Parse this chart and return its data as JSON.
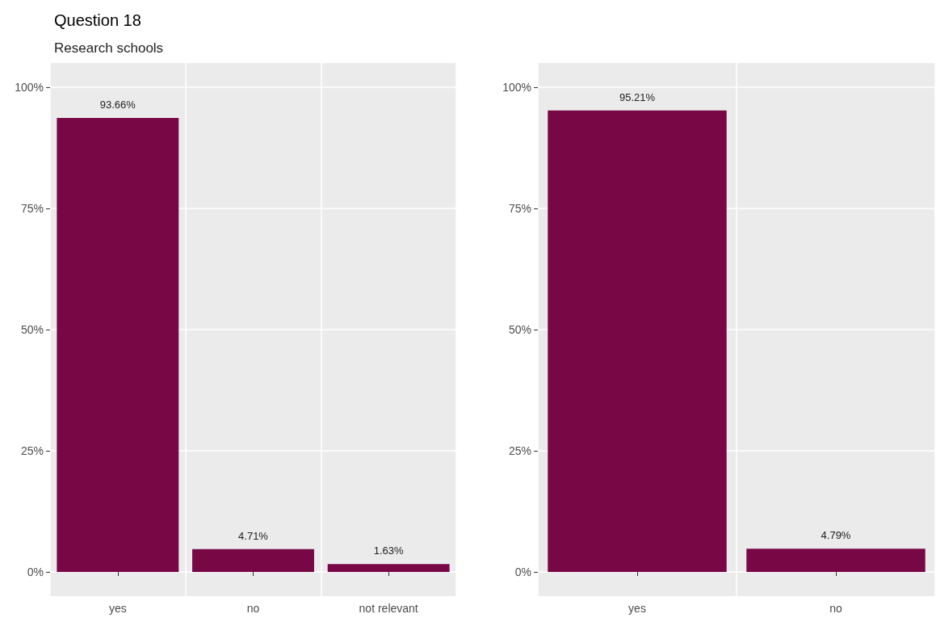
{
  "chart_data": [
    {
      "type": "bar",
      "title": "Question 18",
      "subtitle": "Research schools",
      "categories": [
        "yes",
        "no",
        "not relevant"
      ],
      "values": [
        93.66,
        4.71,
        1.63
      ],
      "value_labels": [
        "93.66%",
        "4.71%",
        "1.63%"
      ],
      "color": "#770845",
      "ylim": [
        -5,
        105
      ],
      "yticks": [
        {
          "value": 0,
          "label": "0%"
        },
        {
          "value": 25,
          "label": "25%"
        },
        {
          "value": 50,
          "label": "50%"
        },
        {
          "value": 75,
          "label": "75%"
        },
        {
          "value": 100,
          "label": "100%"
        }
      ],
      "grid": true
    },
    {
      "type": "bar",
      "categories": [
        "yes",
        "no"
      ],
      "values": [
        95.21,
        4.79
      ],
      "value_labels": [
        "95.21%",
        "4.79%"
      ],
      "color": "#770845",
      "ylim": [
        -5,
        105
      ],
      "yticks": [
        {
          "value": 0,
          "label": "0%"
        },
        {
          "value": 25,
          "label": "25%"
        },
        {
          "value": 50,
          "label": "50%"
        },
        {
          "value": 75,
          "label": "75%"
        },
        {
          "value": 100,
          "label": "100%"
        }
      ],
      "grid": true
    }
  ]
}
